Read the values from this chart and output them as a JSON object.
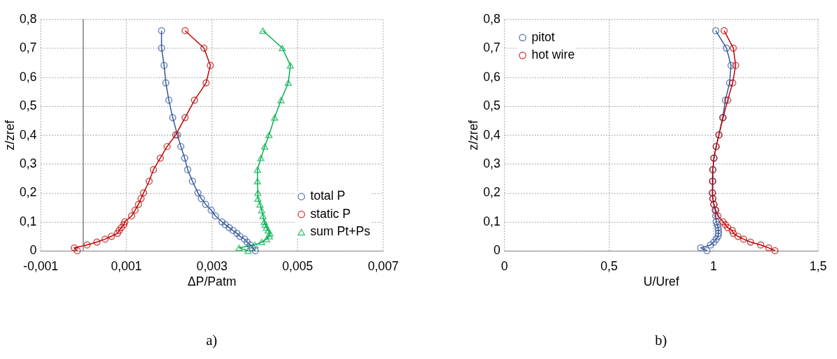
{
  "chart_data": [
    {
      "type": "line",
      "xlabel": "ΔP/Patm",
      "ylabel": "z/zref",
      "annotations": [
        "a)"
      ],
      "xlim": [
        -0.001,
        0.007
      ],
      "xticks": [
        {
          "value": -0.001,
          "label": "-0,001"
        },
        {
          "value": 0.001,
          "label": "0,001"
        },
        {
          "value": 0.003,
          "label": "0,003"
        },
        {
          "value": 0.005,
          "label": "0,005"
        },
        {
          "value": 0.007,
          "label": "0,007"
        }
      ],
      "ylim": [
        0,
        0.8
      ],
      "yticks": [
        0,
        {
          "value": 0.1,
          "label": "0,1"
        },
        {
          "value": 0.2,
          "label": "0,2"
        },
        {
          "value": 0.3,
          "label": "0,3"
        },
        {
          "value": 0.4,
          "label": "0,4"
        },
        {
          "value": 0.5,
          "label": "0,5"
        },
        {
          "value": 0.6,
          "label": "0,6"
        },
        {
          "value": 0.7,
          "label": "0,7"
        },
        {
          "value": 0.8,
          "label": "0,8"
        }
      ],
      "grid": true,
      "legend": "bottom right",
      "line_style": "solid",
      "ref_lines": [
        {
          "axis": "x",
          "value": 0,
          "color": "#808080"
        }
      ],
      "series": [
        {
          "name": "total P",
          "color": "#2f5597",
          "marker": "circle",
          "x": [
            0.00183,
            0.00183,
            0.00189,
            0.00193,
            0.002,
            0.00209,
            0.0022,
            0.00228,
            0.00237,
            0.00244,
            0.00255,
            0.00268,
            0.00276,
            0.00286,
            0.00299,
            0.00309,
            0.00324,
            0.00332,
            0.00341,
            0.0035,
            0.00359,
            0.00366,
            0.00377,
            0.00383,
            0.0039,
            0.00395,
            0.00402
          ],
          "values": [
            0.76,
            0.7,
            0.64,
            0.58,
            0.52,
            0.46,
            0.4,
            0.36,
            0.32,
            0.28,
            0.24,
            0.2,
            0.18,
            0.16,
            0.14,
            0.12,
            0.1,
            0.09,
            0.08,
            0.07,
            0.06,
            0.05,
            0.04,
            0.03,
            0.02,
            0.01,
            0
          ]
        },
        {
          "name": "static P",
          "color": "#c00000",
          "marker": "circle",
          "x": [
            0.00238,
            0.00282,
            0.00297,
            0.00287,
            0.0026,
            0.00238,
            0.00216,
            0.00196,
            0.0018,
            0.00164,
            0.00154,
            0.00141,
            0.00135,
            0.00129,
            0.00121,
            0.00113,
            0.00097,
            0.00095,
            0.00089,
            0.00084,
            0.0008,
            0.00066,
            0.00051,
            0.00032,
            9e-05,
            -0.00021,
            -0.00014
          ],
          "values": [
            0.76,
            0.7,
            0.64,
            0.58,
            0.52,
            0.46,
            0.4,
            0.36,
            0.32,
            0.28,
            0.24,
            0.2,
            0.18,
            0.16,
            0.14,
            0.12,
            0.1,
            0.09,
            0.08,
            0.07,
            0.06,
            0.05,
            0.04,
            0.03,
            0.02,
            0.01,
            0
          ]
        },
        {
          "name": "sum Pt+Ps",
          "color": "#00b050",
          "marker": "triangle",
          "x": [
            0.0042,
            0.00465,
            0.00484,
            0.00479,
            0.00462,
            0.00447,
            0.00434,
            0.00424,
            0.00415,
            0.00407,
            0.00407,
            0.00408,
            0.00408,
            0.00413,
            0.00417,
            0.0042,
            0.00423,
            0.00425,
            0.00428,
            0.00432,
            0.00436,
            0.00435,
            0.00428,
            0.00417,
            0.00401,
            0.00364,
            0.00385
          ],
          "values": [
            0.76,
            0.7,
            0.64,
            0.58,
            0.52,
            0.46,
            0.4,
            0.36,
            0.32,
            0.28,
            0.24,
            0.2,
            0.18,
            0.16,
            0.14,
            0.12,
            0.1,
            0.09,
            0.08,
            0.07,
            0.06,
            0.05,
            0.04,
            0.03,
            0.02,
            0.01,
            0
          ]
        }
      ]
    },
    {
      "type": "line",
      "xlabel": "U/Uref",
      "ylabel": "z/zref",
      "annotations": [
        "b)"
      ],
      "xlim": [
        0,
        1.5
      ],
      "xticks": [
        0,
        {
          "value": 0.5,
          "label": "0,5"
        },
        1,
        {
          "value": 1.5,
          "label": "1,5"
        }
      ],
      "ylim": [
        0,
        0.8
      ],
      "yticks": [
        0,
        {
          "value": 0.1,
          "label": "0,1"
        },
        {
          "value": 0.2,
          "label": "0,2"
        },
        {
          "value": 0.3,
          "label": "0,3"
        },
        {
          "value": 0.4,
          "label": "0,4"
        },
        {
          "value": 0.5,
          "label": "0,5"
        },
        {
          "value": 0.6,
          "label": "0,6"
        },
        {
          "value": 0.7,
          "label": "0,7"
        },
        {
          "value": 0.8,
          "label": "0,8"
        }
      ],
      "grid": true,
      "legend": "top left",
      "line_style": "solid",
      "series": [
        {
          "name": "pitot",
          "color": "#2f5597",
          "marker": "circle",
          "x": [
            1.012,
            1.063,
            1.085,
            1.078,
            1.058,
            1.045,
            1.027,
            1.014,
            1.003,
            0.998,
            0.998,
            0.996,
            0.998,
            1.003,
            1.009,
            1.012,
            1.014,
            1.02,
            1.023,
            1.025,
            1.025,
            1.023,
            1.014,
            1.003,
            0.987,
            0.94,
            0.97
          ],
          "values": [
            0.76,
            0.7,
            0.64,
            0.58,
            0.52,
            0.46,
            0.4,
            0.36,
            0.32,
            0.28,
            0.24,
            0.2,
            0.18,
            0.16,
            0.14,
            0.12,
            0.1,
            0.09,
            0.08,
            0.07,
            0.06,
            0.05,
            0.04,
            0.03,
            0.02,
            0.01,
            0
          ]
        },
        {
          "name": "hot wire",
          "color": "#c00000",
          "marker": "circle",
          "x": [
            1.052,
            1.096,
            1.107,
            1.093,
            1.069,
            1.047,
            1.027,
            1.014,
            1.003,
            0.998,
            0.996,
            0.996,
            0.998,
            1.003,
            1.012,
            1.022,
            1.047,
            1.058,
            1.069,
            1.091,
            1.096,
            1.118,
            1.145,
            1.178,
            1.227,
            1.265,
            1.295
          ],
          "values": [
            0.76,
            0.7,
            0.64,
            0.58,
            0.52,
            0.46,
            0.4,
            0.36,
            0.32,
            0.28,
            0.24,
            0.2,
            0.18,
            0.16,
            0.14,
            0.12,
            0.1,
            0.09,
            0.08,
            0.07,
            0.06,
            0.05,
            0.04,
            0.03,
            0.02,
            0.01,
            0
          ]
        }
      ]
    }
  ]
}
